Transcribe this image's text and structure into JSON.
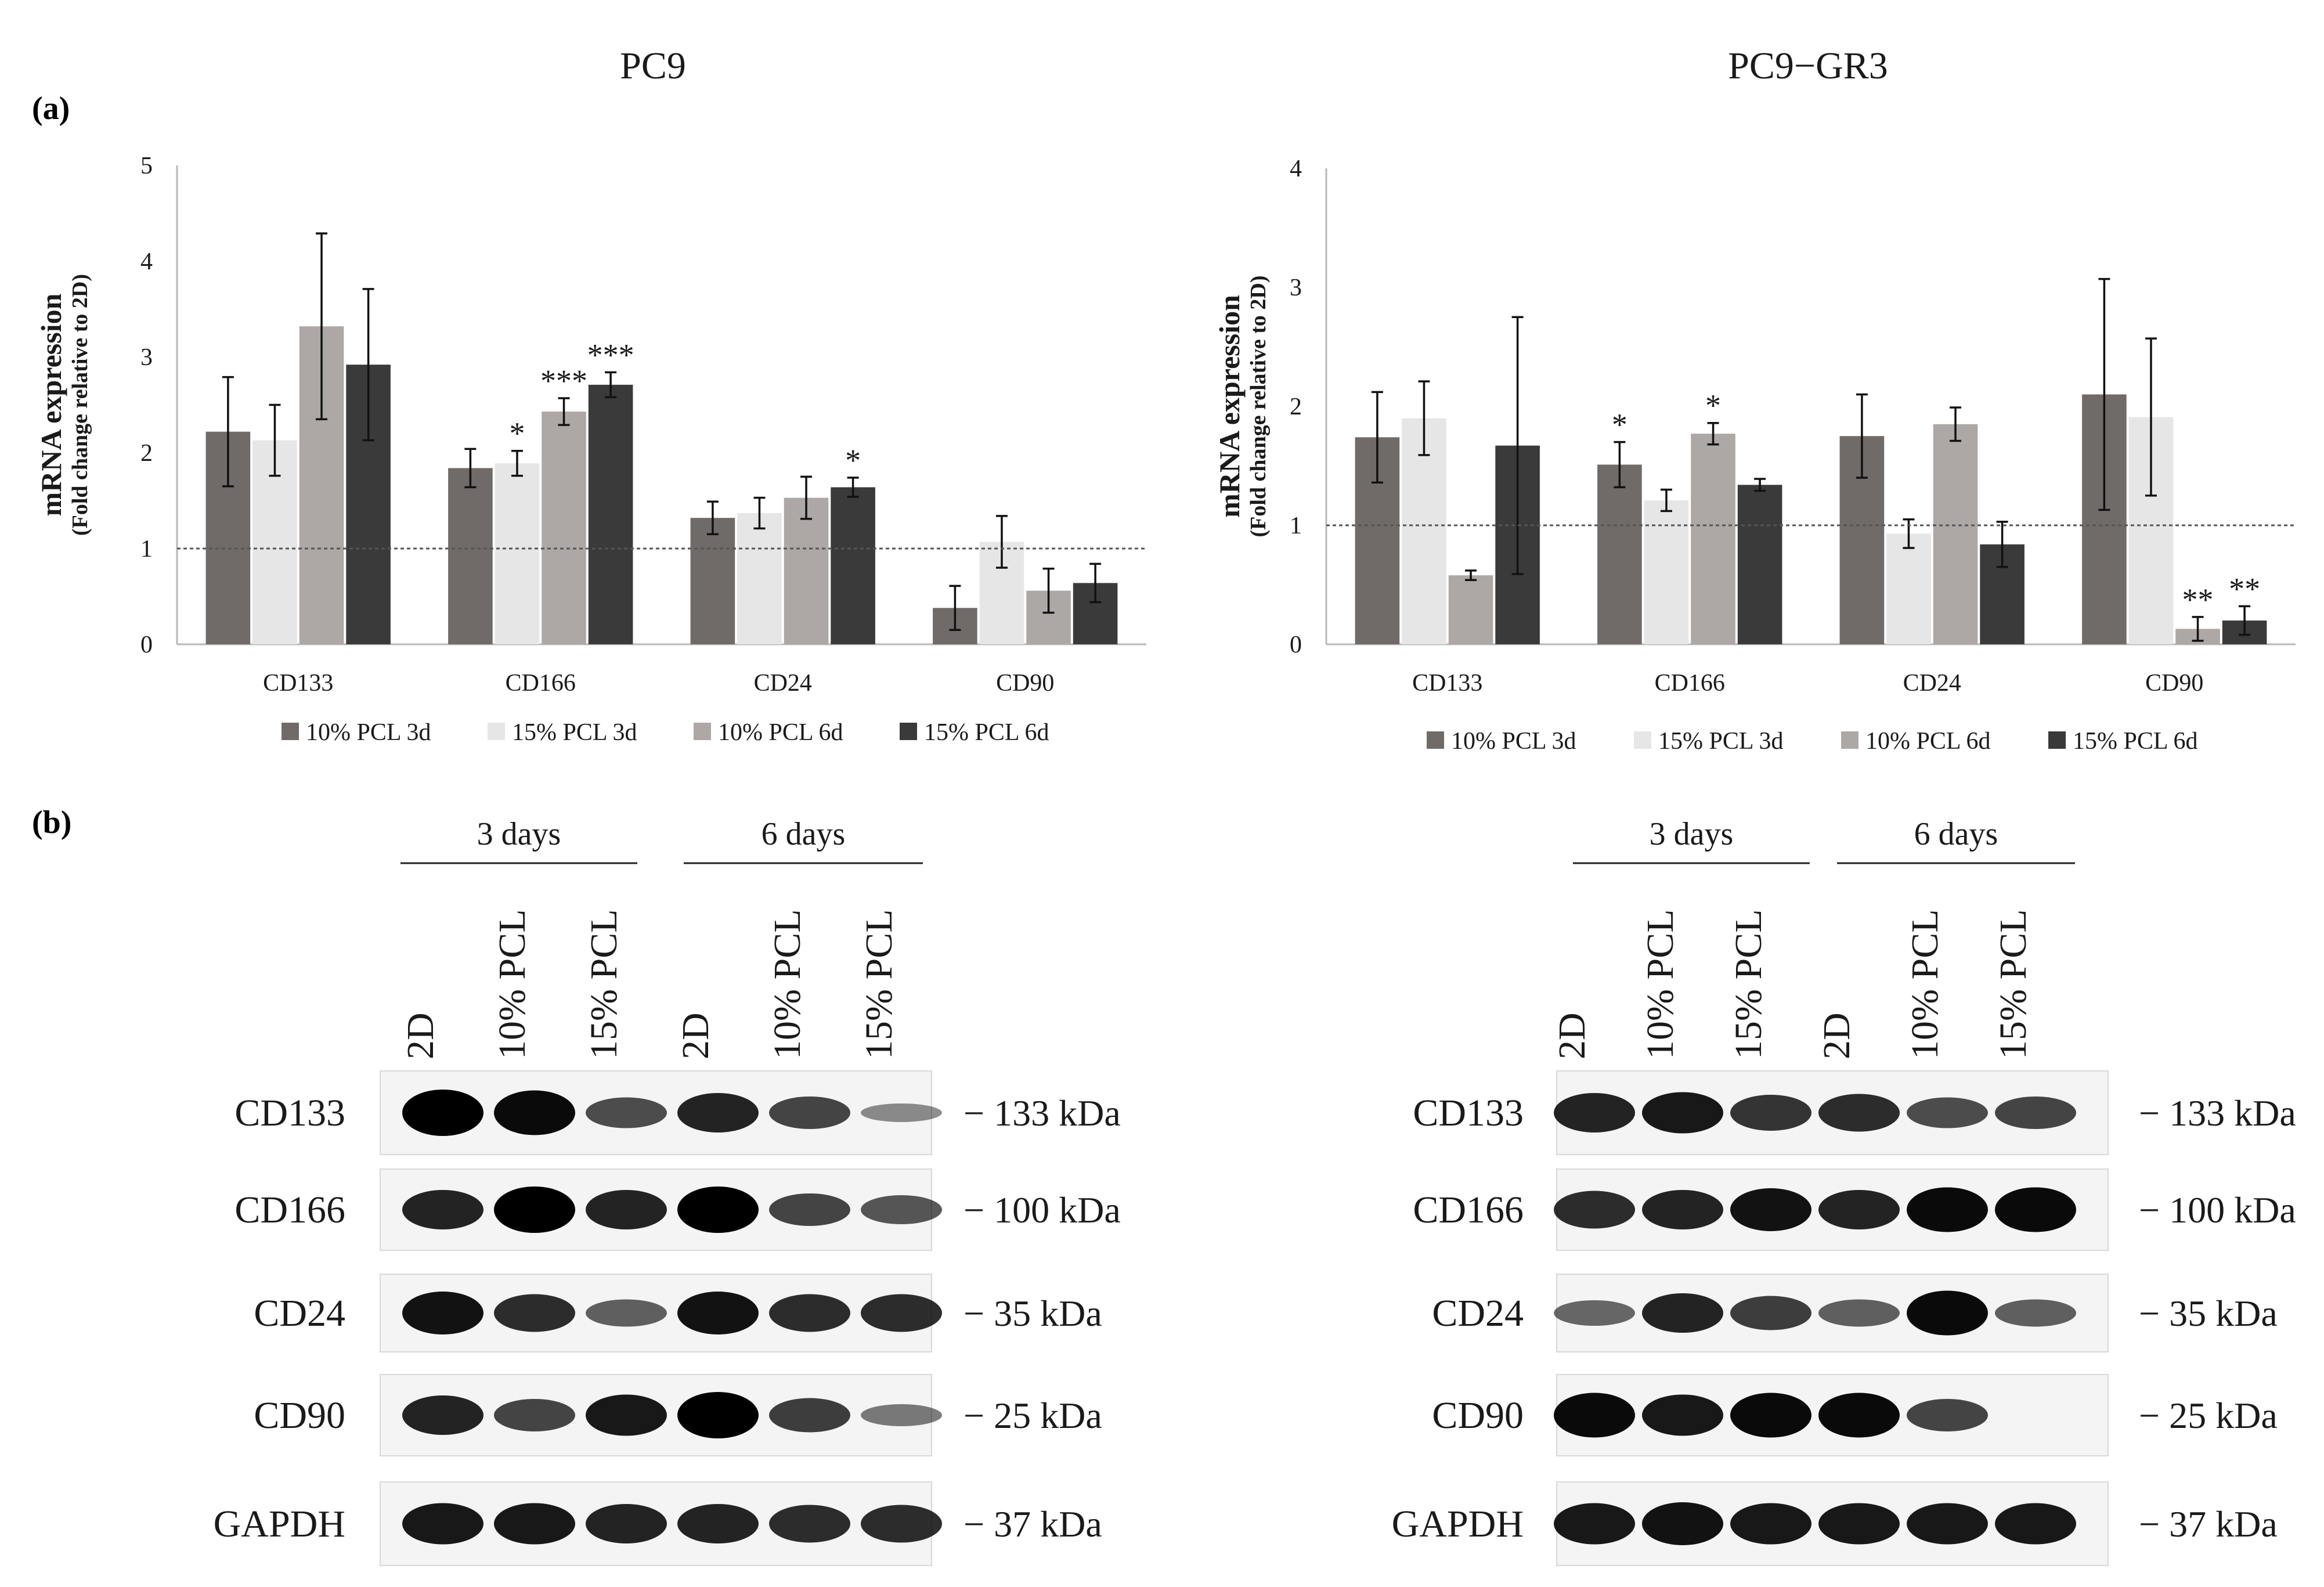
{
  "panel_a_label": "(a)",
  "panel_b_label": "(b)",
  "colors": {
    "10% PCL 3d": "#706b68",
    "15% PCL 3d": "#e6e6e6",
    "10% PCL 6d": "#ada8a6",
    "15% PCL 6d": "#3a3a3a",
    "baseline": "#555555",
    "axis": "#b8b8b8",
    "text": "#1a1a1a",
    "blot_bg": "#f4f4f4",
    "band": "#000000"
  },
  "chart_data": [
    {
      "type": "bar",
      "title": "PC9",
      "ylabel": "mRNA expression",
      "ylabel_sub": "(Fold change relative to 2D)",
      "ylim": [
        0,
        5
      ],
      "yticks": [
        "0",
        "1",
        "2",
        "3",
        "4",
        "5"
      ],
      "baseline": 1,
      "categories": [
        "CD133",
        "CD166",
        "CD24",
        "CD90"
      ],
      "series": [
        {
          "name": "10% PCL 3d",
          "values": [
            2.22,
            1.84,
            1.32,
            0.38
          ],
          "errors": [
            0.57,
            0.2,
            0.17,
            0.23
          ],
          "marks": [
            "",
            "",
            "",
            ""
          ]
        },
        {
          "name": "15% PCL 3d",
          "values": [
            2.13,
            1.89,
            1.37,
            1.07
          ],
          "errors": [
            0.37,
            0.13,
            0.16,
            0.27
          ],
          "marks": [
            "",
            "*",
            "",
            ""
          ]
        },
        {
          "name": "10% PCL 6d",
          "values": [
            3.32,
            2.43,
            1.53,
            0.56
          ],
          "errors": [
            0.97,
            0.14,
            0.22,
            0.23
          ],
          "marks": [
            "",
            "***",
            "",
            ""
          ]
        },
        {
          "name": "15% PCL 6d",
          "values": [
            2.92,
            2.71,
            1.64,
            0.64
          ],
          "errors": [
            0.79,
            0.13,
            0.1,
            0.2
          ],
          "marks": [
            "",
            "***",
            "*",
            ""
          ]
        }
      ],
      "legend_position": "bottom"
    },
    {
      "type": "bar",
      "title": "PC9−GR3",
      "ylabel": "mRNA expression",
      "ylabel_sub": "(Fold change relative to 2D)",
      "ylim": [
        0,
        4
      ],
      "yticks": [
        "0",
        "1",
        "2",
        "3",
        "4"
      ],
      "baseline": 1,
      "categories": [
        "CD133",
        "CD166",
        "CD24",
        "CD90"
      ],
      "series": [
        {
          "name": "10% PCL 3d",
          "values": [
            1.74,
            1.51,
            1.75,
            2.1
          ],
          "errors": [
            0.38,
            0.19,
            0.35,
            0.97
          ],
          "marks": [
            "",
            "*",
            "",
            ""
          ]
        },
        {
          "name": "15% PCL 3d",
          "values": [
            1.9,
            1.21,
            0.93,
            1.91
          ],
          "errors": [
            0.31,
            0.09,
            0.12,
            0.66
          ],
          "marks": [
            "",
            "",
            "",
            ""
          ]
        },
        {
          "name": "10% PCL 6d",
          "values": [
            0.58,
            1.77,
            1.85,
            0.13
          ],
          "errors": [
            0.04,
            0.09,
            0.14,
            0.1
          ],
          "marks": [
            "",
            "*",
            "",
            "**"
          ]
        },
        {
          "name": "15% PCL 6d",
          "values": [
            1.67,
            1.34,
            0.84,
            0.2
          ],
          "errors": [
            1.08,
            0.05,
            0.19,
            0.12
          ],
          "marks": [
            "",
            "",
            "",
            "**"
          ]
        }
      ],
      "legend_position": "bottom"
    }
  ],
  "western_blots": [
    {
      "cell_line": "PC9",
      "groups": [
        "3 days",
        "6 days"
      ],
      "lanes": [
        "2D",
        "10% PCL",
        "15% PCL",
        "2D",
        "10% PCL",
        "15% PCL"
      ],
      "rows": [
        {
          "protein": "CD133",
          "size": "133 kDa",
          "intensity": [
            1.0,
            0.95,
            0.55,
            0.8,
            0.6,
            0.2
          ]
        },
        {
          "protein": "CD166",
          "size": "100 kDa",
          "intensity": [
            0.8,
            1.0,
            0.8,
            1.0,
            0.6,
            0.5
          ]
        },
        {
          "protein": "CD24",
          "size": "35 kDa",
          "intensity": [
            0.9,
            0.75,
            0.45,
            0.9,
            0.75,
            0.75
          ]
        },
        {
          "protein": "CD90",
          "size": "25 kDa",
          "intensity": [
            0.8,
            0.6,
            0.85,
            1.0,
            0.65,
            0.3
          ]
        },
        {
          "protein": "GAPDH",
          "size": "37 kDa",
          "intensity": [
            0.85,
            0.85,
            0.8,
            0.8,
            0.75,
            0.75
          ]
        }
      ]
    },
    {
      "cell_line": "PC9−GR3",
      "groups": [
        "3 days",
        "6 days"
      ],
      "lanes": [
        "2D",
        "10% PCL",
        "15% PCL",
        "2D",
        "10% PCL",
        "15% PCL"
      ],
      "rows": [
        {
          "protein": "CD133",
          "size": "133 kDa",
          "intensity": [
            0.8,
            0.85,
            0.7,
            0.75,
            0.55,
            0.6
          ]
        },
        {
          "protein": "CD166",
          "size": "100 kDa",
          "intensity": [
            0.75,
            0.8,
            0.9,
            0.8,
            0.95,
            0.95
          ]
        },
        {
          "protein": "CD24",
          "size": "35 kDa",
          "intensity": [
            0.4,
            0.8,
            0.65,
            0.45,
            0.95,
            0.45
          ]
        },
        {
          "protein": "CD90",
          "size": "25 kDa",
          "intensity": [
            0.95,
            0.85,
            0.95,
            0.95,
            0.6,
            0.0
          ]
        },
        {
          "protein": "GAPDH",
          "size": "37 kDa",
          "intensity": [
            0.85,
            0.9,
            0.85,
            0.85,
            0.85,
            0.85
          ]
        }
      ]
    }
  ]
}
